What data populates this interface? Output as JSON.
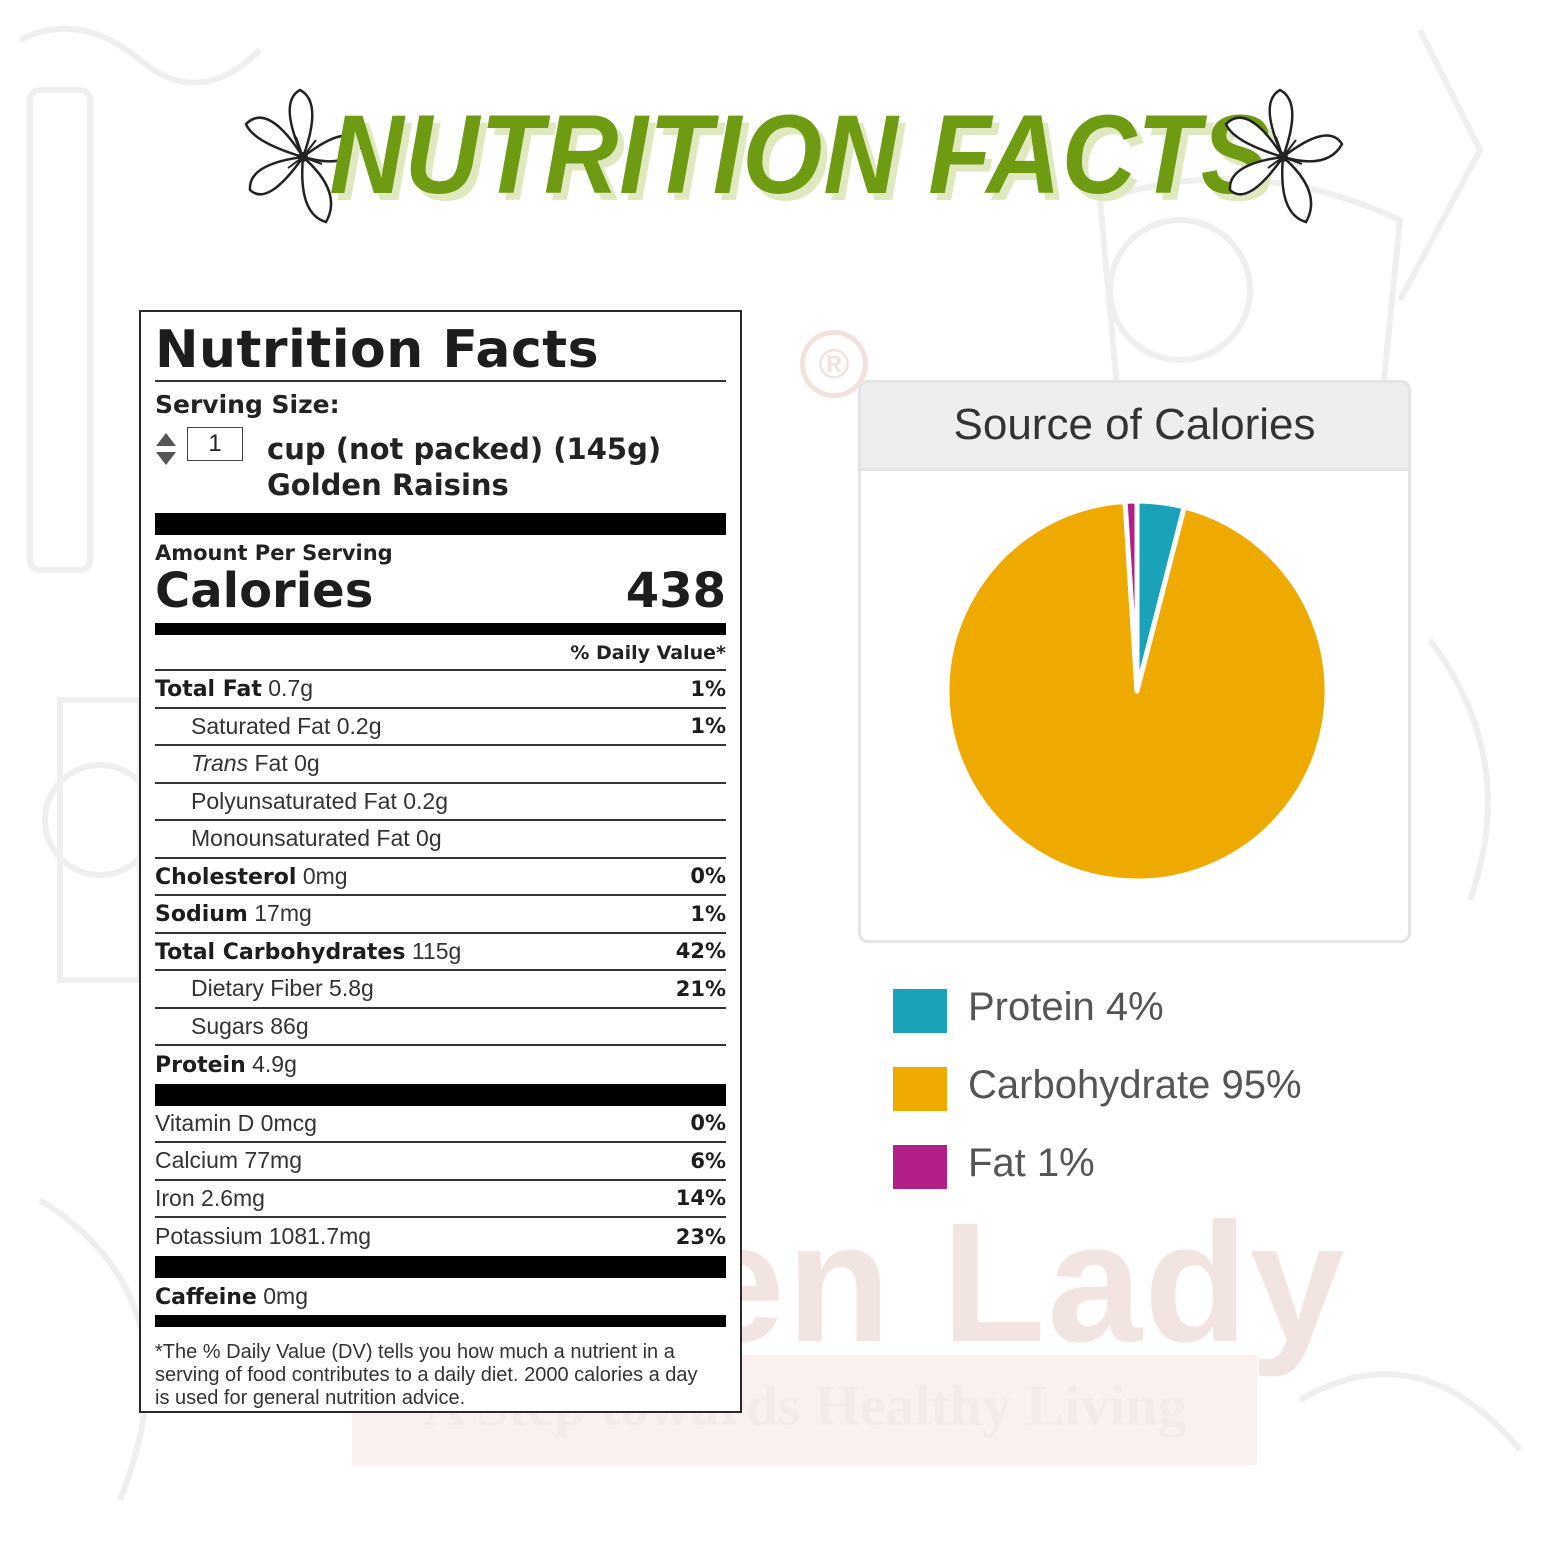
{
  "header": {
    "title": "NUTRITION FACTS"
  },
  "watermark": {
    "brand_partial": "en Lady",
    "tagline_partial": "A Step towards Healthy Living",
    "registered_mark": "®"
  },
  "label": {
    "title": "Nutrition Facts",
    "serving_size_label": "Serving Size:",
    "quantity": "1",
    "serving_unit": "cup (not packed) (145g)",
    "food_name": "Golden Raisins",
    "amount_per_serving": "Amount Per Serving",
    "calories_label": "Calories",
    "calories_value": "438",
    "daily_value_header": "% Daily Value*",
    "nutrients": [
      {
        "name": "Total Fat",
        "amount": "0.7g",
        "dv": "1%",
        "bold": true,
        "indent": false
      },
      {
        "name": "Saturated Fat",
        "amount": "0.2g",
        "dv": "1%",
        "bold": false,
        "indent": true
      },
      {
        "name": "Trans",
        "name_suffix": "Fat",
        "amount": "0g",
        "dv": "",
        "bold": false,
        "indent": true,
        "italic_prefix": true
      },
      {
        "name": "Polyunsaturated Fat",
        "amount": "0.2g",
        "dv": "",
        "bold": false,
        "indent": true
      },
      {
        "name": "Monounsaturated Fat",
        "amount": "0g",
        "dv": "",
        "bold": false,
        "indent": true
      },
      {
        "name": "Cholesterol",
        "amount": "0mg",
        "dv": "0%",
        "bold": true,
        "indent": false
      },
      {
        "name": "Sodium",
        "amount": "17mg",
        "dv": "1%",
        "bold": true,
        "indent": false
      },
      {
        "name": "Total Carbohydrates",
        "amount": "115g",
        "dv": "42%",
        "bold": true,
        "indent": false
      },
      {
        "name": "Dietary Fiber",
        "amount": "5.8g",
        "dv": "21%",
        "bold": false,
        "indent": true
      },
      {
        "name": "Sugars",
        "amount": "86g",
        "dv": "",
        "bold": false,
        "indent": true
      },
      {
        "name": "Protein",
        "amount": "4.9g",
        "dv": "",
        "bold": true,
        "indent": false
      }
    ],
    "vitamins": [
      {
        "name": "Vitamin D",
        "amount": "0mcg",
        "dv": "0%"
      },
      {
        "name": "Calcium",
        "amount": "77mg",
        "dv": "6%"
      },
      {
        "name": "Iron",
        "amount": "2.6mg",
        "dv": "14%"
      },
      {
        "name": "Potassium",
        "amount": "1081.7mg",
        "dv": "23%"
      }
    ],
    "caffeine": {
      "name": "Caffeine",
      "amount": "0mg"
    },
    "footnote": "*The % Daily Value (DV) tells you how much a nutrient in a serving of food contributes to a daily diet. 2000 calories a day is used for general nutrition advice."
  },
  "chart_data": {
    "type": "pie",
    "title": "Source of Calories",
    "categories": [
      "Protein",
      "Carbohydrate",
      "Fat"
    ],
    "values": [
      4,
      95,
      1
    ],
    "legend_labels": [
      "Protein 4%",
      "Carbohydrate 95%",
      "Fat 1%"
    ],
    "colors": [
      "#1aa3b8",
      "#eeaa00",
      "#b21f86"
    ],
    "legend_position": "bottom-left"
  }
}
